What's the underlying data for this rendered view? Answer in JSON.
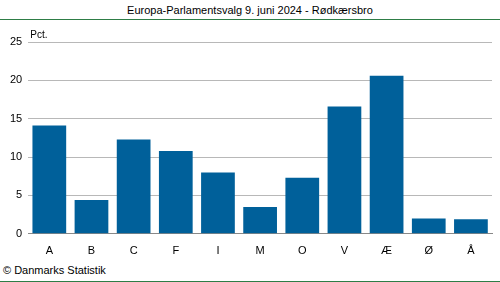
{
  "chart_data": {
    "type": "bar",
    "title": "Europa-Parlamentsvalg 9. juni 2024 - Rødkærsbro",
    "y_label": "Pct.",
    "source": "© Danmarks Statistik",
    "categories": [
      "A",
      "B",
      "C",
      "F",
      "I",
      "M",
      "O",
      "V",
      "Æ",
      "Ø",
      "Å"
    ],
    "values": [
      14.1,
      4.4,
      12.3,
      10.8,
      8.0,
      3.5,
      7.3,
      16.6,
      20.6,
      2.0,
      1.9
    ],
    "color": "#00609a",
    "ylim": [
      0,
      25
    ],
    "yticks": [
      0,
      5,
      10,
      15,
      20,
      25
    ],
    "grid": true
  }
}
